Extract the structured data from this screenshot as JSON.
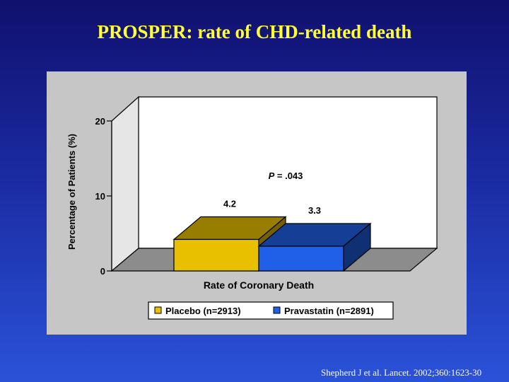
{
  "slide": {
    "title": "PROSPER: rate of CHD-related death",
    "citation": "Shepherd J et al. Lancet. 2002;360:1623-30"
  },
  "chart_data": {
    "type": "bar",
    "style": "3d",
    "categories": [
      "Rate of Coronary Death"
    ],
    "series": [
      {
        "name": "Placebo (n=2913)",
        "values": [
          4.2
        ],
        "color": "#e8c000",
        "data_label": "4.2"
      },
      {
        "name": "Pravastatin (n=2891)",
        "values": [
          3.3
        ],
        "color": "#2060e8",
        "data_label": "3.3"
      }
    ],
    "xlabel": "Rate of Coronary Death",
    "ylabel": "Percentage of Patients (%)",
    "ylim": [
      0,
      20
    ],
    "yticks": [
      0,
      10,
      20
    ],
    "annotation": "P = .043",
    "legend_position": "bottom",
    "grid": false
  }
}
